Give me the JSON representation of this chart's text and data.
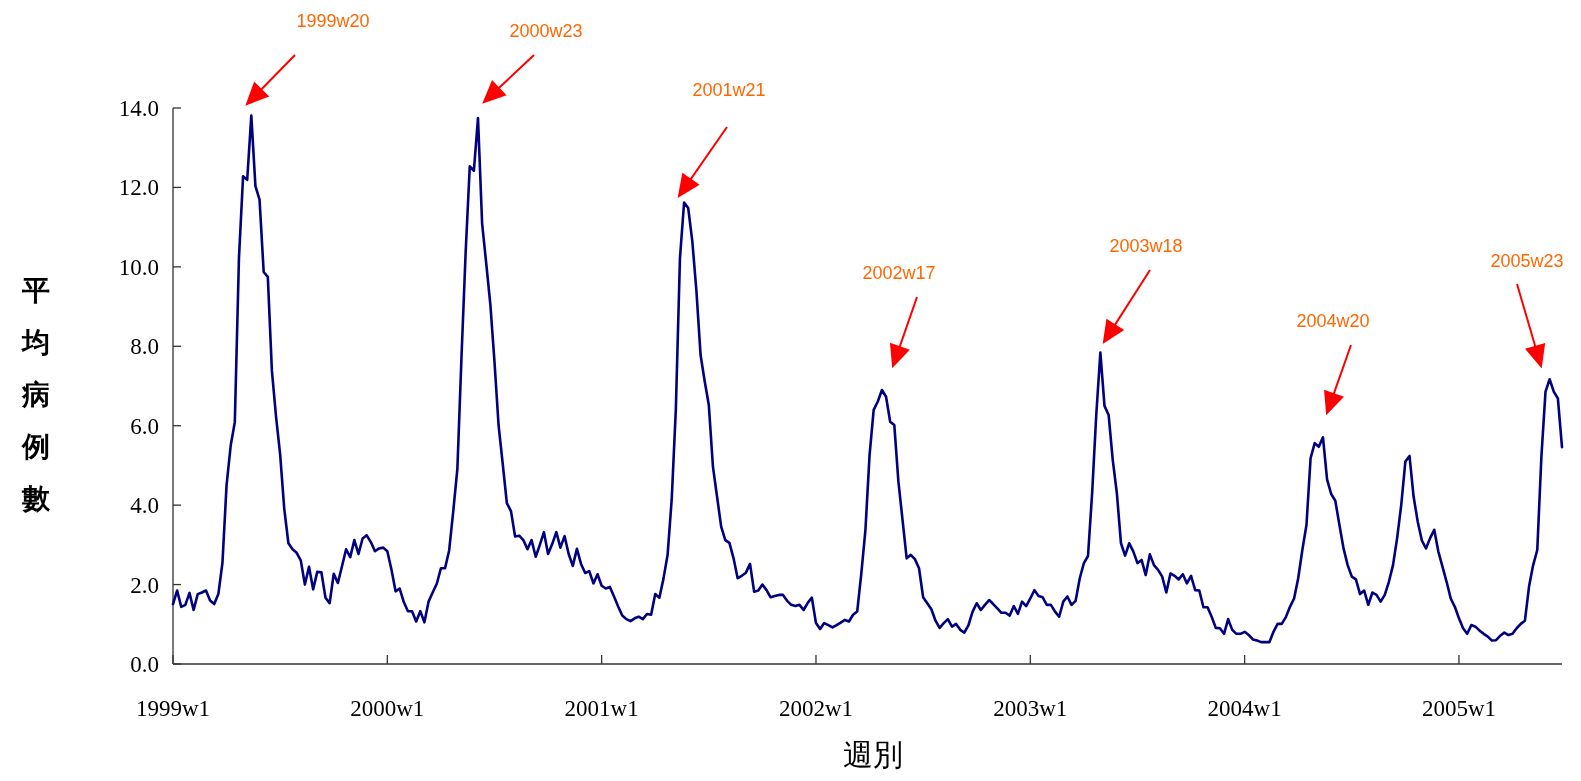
{
  "chart_data": {
    "type": "line",
    "xlabel": "週別",
    "ylabel": "平均病例數",
    "categories": [
      "1999w1",
      null,
      null,
      null,
      null,
      null,
      null,
      null,
      null,
      null,
      null,
      null,
      null,
      null,
      null,
      null,
      null,
      null,
      null,
      null,
      null,
      null,
      null,
      null,
      null,
      null,
      null,
      null,
      null,
      null,
      null,
      null,
      null,
      null,
      null,
      null,
      null,
      null,
      null,
      null,
      null,
      null,
      null,
      null,
      null,
      null,
      null,
      null,
      null,
      null,
      null,
      null,
      "2000w1",
      null,
      null,
      null,
      null,
      null,
      null,
      null,
      null,
      null,
      null,
      null,
      null,
      null,
      null,
      null,
      null,
      null,
      null,
      null,
      null,
      null,
      null,
      null,
      null,
      null,
      null,
      null,
      null,
      null,
      null,
      null,
      null,
      null,
      null,
      null,
      null,
      null,
      null,
      null,
      null,
      null,
      null,
      null,
      null,
      null,
      null,
      null,
      null,
      null,
      null,
      null,
      "2001w1",
      null,
      null,
      null,
      null,
      null,
      null,
      null,
      null,
      null,
      null,
      null,
      null,
      null,
      null,
      null,
      null,
      null,
      null,
      null,
      null,
      null,
      null,
      null,
      null,
      null,
      null,
      null,
      null,
      null,
      null,
      null,
      null,
      null,
      null,
      null,
      null,
      null,
      null,
      null,
      null,
      null,
      null,
      null,
      null,
      null,
      null,
      null,
      null,
      null,
      null,
      null,
      "2002w1",
      null,
      null,
      null,
      null,
      null,
      null,
      null,
      null,
      null,
      null,
      null,
      null,
      null,
      null,
      null,
      null,
      null,
      null,
      null,
      null,
      null,
      null,
      null,
      null,
      null,
      null,
      null,
      null,
      null,
      null,
      null,
      null,
      null,
      null,
      null,
      null,
      null,
      null,
      null,
      null,
      null,
      null,
      null,
      null,
      null,
      null,
      null,
      null,
      null,
      null,
      null,
      "2003w1",
      null,
      null,
      null,
      null,
      null,
      null,
      null,
      null,
      null,
      null,
      null,
      null,
      null,
      null,
      null,
      null,
      null,
      null,
      null,
      null,
      null,
      null,
      null,
      null,
      null,
      null,
      null,
      null,
      null,
      null,
      null,
      null,
      null,
      null,
      null,
      null,
      null,
      null,
      null,
      null,
      null,
      null,
      null,
      null,
      null,
      null,
      null,
      null,
      null,
      null,
      null,
      "2004w1",
      null,
      null,
      null,
      null,
      null,
      null,
      null,
      null,
      null,
      null,
      null,
      null,
      null,
      null,
      null,
      null,
      null,
      null,
      null,
      null,
      null,
      null,
      null,
      null,
      null,
      null,
      null,
      null,
      null,
      null,
      null,
      null,
      null,
      null,
      null,
      null,
      null,
      null,
      null,
      null,
      null,
      null,
      null,
      null,
      null,
      null,
      null,
      null,
      null,
      null,
      null,
      "2005w1",
      null,
      null,
      null,
      null,
      null,
      null,
      null,
      null,
      null,
      null,
      null,
      null,
      null,
      null,
      null,
      null,
      null,
      null,
      null,
      null,
      null,
      null,
      null,
      null,
      null
    ],
    "ylim": [
      0,
      14
    ],
    "yticks": [
      {
        "value": 0,
        "label": "0.0"
      },
      {
        "value": 2,
        "label": "2.0"
      },
      {
        "value": 4,
        "label": "4.0"
      },
      {
        "value": 6,
        "label": "6.0"
      },
      {
        "value": 8,
        "label": "8.0"
      },
      {
        "value": 10,
        "label": "10.0"
      },
      {
        "value": 12,
        "label": "12.0"
      },
      {
        "value": 14,
        "label": "14.0"
      }
    ],
    "line_style": "solid",
    "series": [
      {
        "color": "#000080",
        "values": [
          1.51,
          1.85,
          1.44,
          1.49,
          1.79,
          1.36,
          1.76,
          1.8,
          1.85,
          1.6,
          1.51,
          1.76,
          2.55,
          4.51,
          5.5,
          6.09,
          10.22,
          12.28,
          12.19,
          13.81,
          12.03,
          11.69,
          9.87,
          9.75,
          7.38,
          6.23,
          5.27,
          3.9,
          3.04,
          2.89,
          2.8,
          2.61,
          2.0,
          2.45,
          1.88,
          2.32,
          2.31,
          1.67,
          1.53,
          2.27,
          2.04,
          2.46,
          2.89,
          2.69,
          3.12,
          2.77,
          3.16,
          3.24,
          3.07,
          2.84,
          2.91,
          2.93,
          2.84,
          2.38,
          1.83,
          1.9,
          1.56,
          1.33,
          1.33,
          1.07,
          1.33,
          1.05,
          1.57,
          1.8,
          2.02,
          2.41,
          2.41,
          2.86,
          3.85,
          4.92,
          7.75,
          10.36,
          12.53,
          12.42,
          13.75,
          11.09,
          10.08,
          9.05,
          7.61,
          6.0,
          5.04,
          4.05,
          3.85,
          3.21,
          3.23,
          3.12,
          2.89,
          3.12,
          2.7,
          3.0,
          3.32,
          2.77,
          3.02,
          3.32,
          2.93,
          3.22,
          2.77,
          2.47,
          2.9,
          2.52,
          2.29,
          2.34,
          2.03,
          2.26,
          1.97,
          1.9,
          1.94,
          1.7,
          1.45,
          1.22,
          1.13,
          1.08,
          1.15,
          1.19,
          1.13,
          1.26,
          1.24,
          1.76,
          1.67,
          2.15,
          2.75,
          4.15,
          6.41,
          10.22,
          11.62,
          11.48,
          10.64,
          9.38,
          7.78,
          7.12,
          6.52,
          4.97,
          4.21,
          3.46,
          3.12,
          3.05,
          2.66,
          2.16,
          2.22,
          2.3,
          2.52,
          1.82,
          1.85,
          2.0,
          1.86,
          1.68,
          1.71,
          1.74,
          1.74,
          1.59,
          1.49,
          1.46,
          1.49,
          1.36,
          1.54,
          1.67,
          1.03,
          0.88,
          1.03,
          0.98,
          0.92,
          0.98,
          1.04,
          1.11,
          1.07,
          1.24,
          1.32,
          2.28,
          3.38,
          5.26,
          6.4,
          6.61,
          6.9,
          6.73,
          6.1,
          6.02,
          4.59,
          3.63,
          2.66,
          2.75,
          2.64,
          2.41,
          1.68,
          1.53,
          1.38,
          1.09,
          0.91,
          1.03,
          1.13,
          0.94,
          1.01,
          0.86,
          0.79,
          0.98,
          1.32,
          1.53,
          1.36,
          1.49,
          1.61,
          1.51,
          1.4,
          1.29,
          1.29,
          1.22,
          1.46,
          1.26,
          1.57,
          1.46,
          1.65,
          1.86,
          1.71,
          1.68,
          1.49,
          1.49,
          1.32,
          1.19,
          1.57,
          1.7,
          1.49,
          1.59,
          2.16,
          2.54,
          2.72,
          4.3,
          6.27,
          7.84,
          6.5,
          6.27,
          5.14,
          4.3,
          3.04,
          2.73,
          3.04,
          2.83,
          2.54,
          2.62,
          2.24,
          2.76,
          2.49,
          2.37,
          2.2,
          1.8,
          2.28,
          2.22,
          2.13,
          2.26,
          2.03,
          2.22,
          1.86,
          1.85,
          1.43,
          1.43,
          1.19,
          0.91,
          0.9,
          0.76,
          1.13,
          0.86,
          0.76,
          0.76,
          0.81,
          0.73,
          0.62,
          0.59,
          0.55,
          0.55,
          0.55,
          0.81,
          1.01,
          1.01,
          1.18,
          1.44,
          1.65,
          2.16,
          2.87,
          3.5,
          5.18,
          5.56,
          5.47,
          5.71,
          4.65,
          4.28,
          4.11,
          3.5,
          2.91,
          2.49,
          2.2,
          2.13,
          1.76,
          1.85,
          1.49,
          1.8,
          1.74,
          1.57,
          1.74,
          2.07,
          2.49,
          3.17,
          4.01,
          5.1,
          5.24,
          4.21,
          3.58,
          3.11,
          2.91,
          3.17,
          3.38,
          2.83,
          2.45,
          2.07,
          1.65,
          1.44,
          1.15,
          0.9,
          0.76,
          0.98,
          0.94,
          0.84,
          0.76,
          0.69,
          0.59,
          0.6,
          0.71,
          0.79,
          0.73,
          0.76,
          0.9,
          1.01,
          1.09,
          1.95,
          2.49,
          2.87,
          5.22,
          6.86,
          7.17,
          6.86,
          6.69,
          5.46
        ]
      }
    ],
    "annotations": [
      "1999w20",
      "2000w23",
      "2001w21",
      "2002w17",
      "2003w18",
      "2004w20",
      "2005w23"
    ]
  }
}
